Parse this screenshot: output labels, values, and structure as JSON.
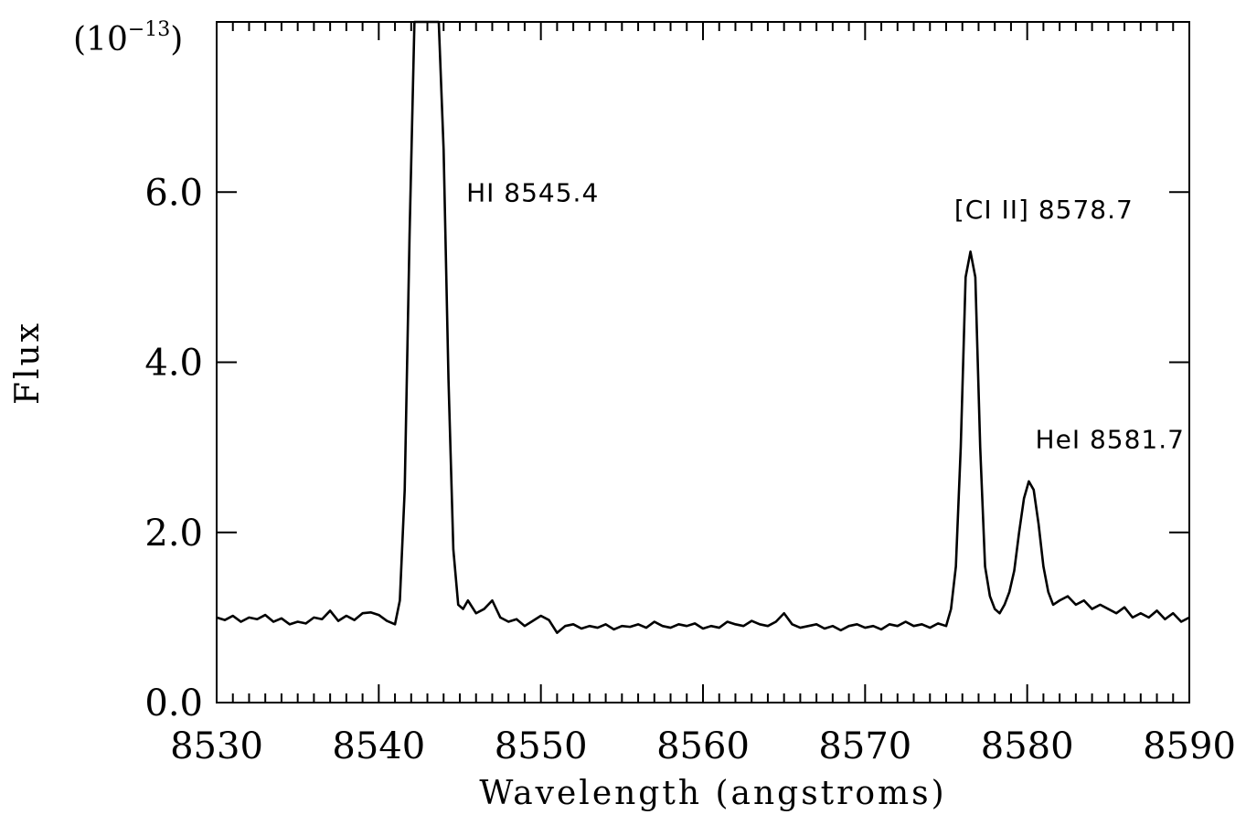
{
  "chart_data": {
    "type": "line",
    "title": "",
    "xlabel": "Wavelength (angstroms)",
    "ylabel": "Flux",
    "y_scale_prefix": "(10",
    "y_scale_exp": "−13",
    "y_scale_suffix": ")",
    "xlim": [
      8530,
      8590
    ],
    "ylim": [
      0.0,
      8.0
    ],
    "x_ticks": [
      8530,
      8540,
      8550,
      8560,
      8570,
      8580,
      8590
    ],
    "x_tick_labels": [
      "8530",
      "8540",
      "8550",
      "8560",
      "8570",
      "8580",
      "8590"
    ],
    "y_ticks": [
      0,
      2,
      4,
      6
    ],
    "y_tick_labels": [
      "0.0",
      "2.0",
      "4.0",
      "6.0"
    ],
    "grid": false,
    "legend": "none",
    "line_color": "#000000",
    "annotations": [
      {
        "text": "HI 8545.4",
        "x": 8545.4,
        "y": 6.0
      },
      {
        "text": "[CI II] 8578.7",
        "x": 8575.5,
        "y": 5.8
      },
      {
        "text": "HeI 8581.7",
        "x": 8580.5,
        "y": 3.1
      }
    ],
    "series": [
      {
        "x": [
          8530.0,
          8530.5,
          8531.0,
          8531.5,
          8532.0,
          8532.5,
          8533.0,
          8533.5,
          8534.0,
          8534.5,
          8535.0,
          8535.5,
          8536.0,
          8536.5,
          8537.0,
          8537.5,
          8538.0,
          8538.5,
          8539.0,
          8539.5,
          8540.0,
          8540.5,
          8541.0,
          8541.3,
          8541.6,
          8541.9,
          8542.2,
          8542.5,
          8542.8,
          8543.1,
          8543.4,
          8543.7,
          8544.0,
          8544.3,
          8544.6,
          8544.9,
          8545.2,
          8545.5,
          8546.0,
          8546.5,
          8547.0,
          8547.5,
          8548.0,
          8548.5,
          8549.0,
          8549.5,
          8550.0,
          8550.5,
          8551.0,
          8551.5,
          8552.0,
          8552.5,
          8553.0,
          8553.5,
          8554.0,
          8554.5,
          8555.0,
          8555.5,
          8556.0,
          8556.5,
          8557.0,
          8557.5,
          8558.0,
          8558.5,
          8559.0,
          8559.5,
          8560.0,
          8560.5,
          8561.0,
          8561.5,
          8562.0,
          8562.5,
          8563.0,
          8563.5,
          8564.0,
          8564.5,
          8565.0,
          8565.5,
          8566.0,
          8566.5,
          8567.0,
          8567.5,
          8568.0,
          8568.5,
          8569.0,
          8569.5,
          8570.0,
          8570.5,
          8571.0,
          8571.5,
          8572.0,
          8572.5,
          8573.0,
          8573.5,
          8574.0,
          8574.5,
          8575.0,
          8575.3,
          8575.6,
          8575.9,
          8576.2,
          8576.5,
          8576.8,
          8577.1,
          8577.4,
          8577.7,
          8578.0,
          8578.3,
          8578.6,
          8578.9,
          8579.2,
          8579.5,
          8579.8,
          8580.1,
          8580.4,
          8580.7,
          8581.0,
          8581.3,
          8581.6,
          8582.0,
          8582.5,
          8583.0,
          8583.5,
          8584.0,
          8584.5,
          8585.0,
          8585.5,
          8586.0,
          8586.5,
          8587.0,
          8587.5,
          8588.0,
          8588.5,
          8589.0,
          8589.5,
          8590.0
        ],
        "y": [
          1.0,
          0.97,
          1.02,
          0.95,
          1.0,
          0.98,
          1.03,
          0.95,
          0.99,
          0.92,
          0.95,
          0.93,
          1.0,
          0.98,
          1.08,
          0.96,
          1.02,
          0.97,
          1.05,
          1.06,
          1.03,
          0.96,
          0.92,
          1.2,
          2.5,
          5.5,
          8.0,
          8.0,
          8.0,
          8.0,
          8.0,
          8.0,
          6.5,
          3.8,
          1.8,
          1.15,
          1.1,
          1.2,
          1.05,
          1.1,
          1.2,
          1.0,
          0.95,
          0.98,
          0.9,
          0.96,
          1.02,
          0.97,
          0.82,
          0.9,
          0.92,
          0.87,
          0.9,
          0.88,
          0.92,
          0.86,
          0.9,
          0.89,
          0.92,
          0.88,
          0.95,
          0.9,
          0.88,
          0.92,
          0.9,
          0.93,
          0.87,
          0.9,
          0.88,
          0.95,
          0.92,
          0.9,
          0.96,
          0.92,
          0.9,
          0.95,
          1.05,
          0.92,
          0.88,
          0.9,
          0.92,
          0.87,
          0.9,
          0.85,
          0.9,
          0.92,
          0.88,
          0.9,
          0.86,
          0.92,
          0.9,
          0.95,
          0.9,
          0.92,
          0.88,
          0.93,
          0.9,
          1.1,
          1.6,
          3.0,
          5.0,
          5.3,
          5.0,
          3.0,
          1.6,
          1.25,
          1.1,
          1.05,
          1.15,
          1.3,
          1.55,
          2.0,
          2.4,
          2.6,
          2.5,
          2.1,
          1.6,
          1.3,
          1.15,
          1.2,
          1.25,
          1.15,
          1.2,
          1.1,
          1.15,
          1.1,
          1.05,
          1.12,
          1.0,
          1.05,
          1.0,
          1.08,
          0.98,
          1.05,
          0.95,
          1.0
        ]
      }
    ]
  }
}
